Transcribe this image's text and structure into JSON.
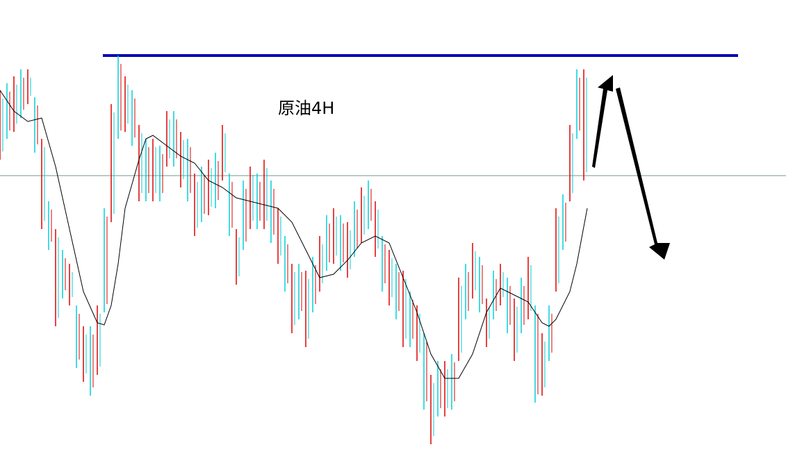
{
  "chart_data": {
    "type": "candlestick",
    "title": "原油4H",
    "x": [
      0,
      1,
      2,
      3,
      4,
      5,
      6,
      7,
      8,
      9,
      10,
      11,
      12,
      13,
      14,
      15,
      16,
      17,
      18,
      19,
      20,
      21,
      22,
      23,
      24,
      25,
      26,
      27,
      28,
      29,
      30,
      31,
      32,
      33,
      34,
      35,
      36,
      37,
      38,
      39,
      40,
      41,
      42,
      43,
      44,
      45,
      46,
      47,
      48,
      49,
      50,
      51,
      52,
      53,
      54,
      55,
      56,
      57,
      58,
      59,
      60,
      61,
      62,
      63,
      64,
      65,
      66,
      67,
      68,
      69,
      70,
      71,
      72,
      73,
      74,
      75,
      76,
      77,
      78,
      79,
      80,
      81,
      82,
      83,
      84
    ],
    "high": [
      524,
      534,
      544,
      554,
      554,
      514,
      454,
      364,
      324,
      294,
      274,
      214,
      184,
      184,
      214,
      354,
      504,
      574,
      544,
      524,
      474,
      454,
      454,
      444,
      494,
      494,
      464,
      454,
      404,
      414,
      424,
      434,
      474,
      404,
      324,
      394,
      414,
      404,
      424,
      394,
      354,
      314,
      274,
      274,
      264,
      284,
      314,
      344,
      354,
      344,
      334,
      364,
      384,
      394,
      364,
      314,
      294,
      274,
      264,
      234,
      214,
      174,
      114,
      134,
      134,
      144,
      254,
      274,
      304,
      284,
      224,
      264,
      274,
      254,
      224,
      254,
      284,
      214,
      174,
      214,
      354,
      374,
      474,
      554,
      554
    ],
    "low": [
      424,
      454,
      464,
      484,
      504,
      434,
      324,
      294,
      184,
      224,
      214,
      124,
      104,
      84,
      114,
      204,
      334,
      454,
      464,
      444,
      364,
      364,
      364,
      364,
      414,
      414,
      384,
      364,
      314,
      334,
      344,
      354,
      394,
      314,
      244,
      294,
      324,
      324,
      324,
      304,
      274,
      234,
      174,
      194,
      154,
      204,
      234,
      264,
      274,
      264,
      254,
      284,
      304,
      324,
      284,
      234,
      214,
      194,
      154,
      154,
      134,
      64,
      14,
      54,
      54,
      64,
      134,
      194,
      224,
      204,
      154,
      194,
      214,
      174,
      134,
      174,
      194,
      74,
      84,
      134,
      234,
      294,
      364,
      454,
      394
    ],
    "colors": {
      "up": "#e00000",
      "down": "#00d0d8"
    },
    "ma": {
      "color": "#000000",
      "x": [
        0,
        2,
        4,
        6,
        8,
        10,
        12,
        14,
        15,
        16,
        17,
        18,
        20,
        21,
        22,
        24,
        26,
        28,
        30,
        32,
        34,
        36,
        38,
        40,
        42,
        44,
        46,
        48,
        50,
        52,
        54,
        56,
        58,
        60,
        62,
        64,
        66,
        68,
        70,
        72,
        74,
        76,
        78,
        79,
        80,
        82,
        83,
        84.5
      ],
      "values": [
        524,
        494,
        479,
        484,
        414,
        324,
        234,
        189,
        186,
        214,
        274,
        354,
        424,
        454,
        459,
        444,
        429,
        419,
        394,
        384,
        369,
        364,
        359,
        354,
        334,
        294,
        254,
        259,
        279,
        304,
        314,
        304,
        254,
        204,
        144,
        109,
        109,
        144,
        204,
        239,
        229,
        219,
        189,
        184,
        194,
        234,
        274,
        354
      ]
    },
    "levels": [
      {
        "value": 574,
        "color": "#0000b4",
        "from": 14.8,
        "to": 106.2
      },
      {
        "value": 401,
        "color": "#6f9a8e",
        "from": 0,
        "to": 113.1
      }
    ],
    "xlim": [
      0,
      113.1
    ],
    "ylim": [
      0,
      654
    ]
  }
}
